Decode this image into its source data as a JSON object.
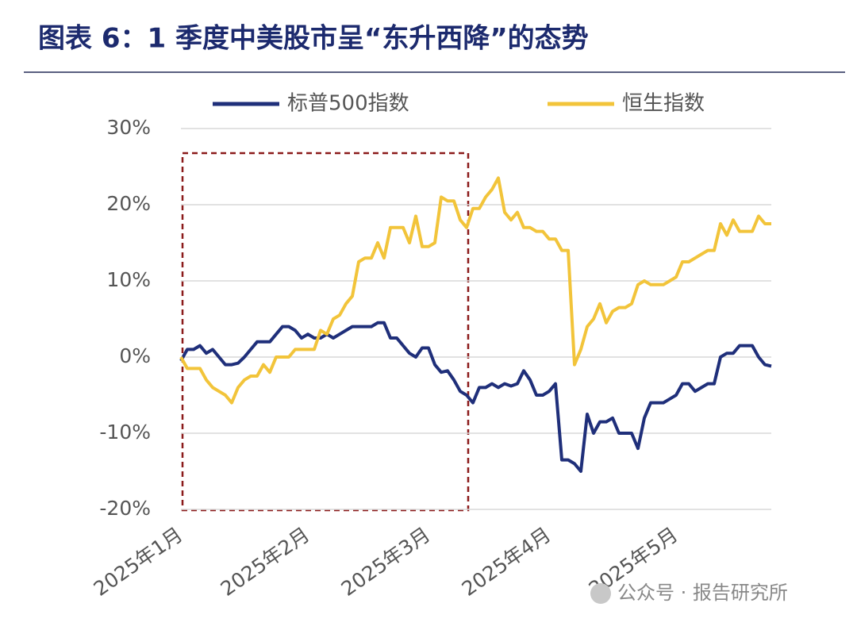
{
  "chart_data": {
    "type": "line",
    "title": "图表 6：1 季度中美股市呈“东升西降”的态势",
    "watermark": "公众号 · 报告研究所",
    "categories": [
      "2025年1月",
      null,
      null,
      null,
      null,
      null,
      null,
      null,
      null,
      null,
      null,
      null,
      null,
      null,
      null,
      null,
      null,
      null,
      null,
      null,
      "2025年2月",
      null,
      null,
      null,
      null,
      null,
      null,
      null,
      null,
      null,
      null,
      null,
      null,
      null,
      null,
      null,
      null,
      null,
      null,
      "2025年3月",
      null,
      null,
      null,
      null,
      null,
      null,
      null,
      null,
      null,
      null,
      null,
      null,
      null,
      null,
      null,
      null,
      null,
      null,
      "2025年4月",
      null,
      null,
      null,
      null,
      null,
      null,
      null,
      null,
      null,
      null,
      null,
      null,
      null,
      null,
      null,
      null,
      null,
      null,
      null,
      "2025年5月",
      null,
      null,
      null,
      null,
      null,
      null,
      null,
      null,
      null,
      null,
      null,
      null,
      null,
      null,
      null
    ],
    "series": [
      {
        "name": "标普500指数",
        "color": "#1f2f7a",
        "values": [
          -0.5,
          1,
          1,
          1.5,
          0.5,
          1,
          0,
          -1,
          -1,
          -0.8,
          0,
          1,
          2,
          2,
          2,
          3,
          4,
          4,
          3.5,
          2.5,
          3,
          2.5,
          2.5,
          3,
          2.5,
          3,
          3.5,
          4,
          4,
          4,
          4,
          4.5,
          4.5,
          2.5,
          2.5,
          1.5,
          0.5,
          0,
          1.2,
          1.2,
          -1,
          -2,
          -1.8,
          -3,
          -4.5,
          -5,
          -6,
          -4,
          -4,
          -3.5,
          -4,
          -3.5,
          -3.8,
          -3.5,
          -1.8,
          -3,
          -5,
          -5,
          -4.5,
          -3.5,
          -13.5,
          -13.5,
          -14,
          -15,
          -7.5,
          -10,
          -8.5,
          -8.5,
          -8,
          -10,
          -10,
          -10,
          -12,
          -8,
          -6,
          -6,
          -6,
          -5.5,
          -5,
          -3.5,
          -3.5,
          -4.5,
          -4,
          -3.5,
          -3.5,
          0,
          0.5,
          0.5,
          1.5,
          1.5,
          1.5,
          0,
          -1,
          -1.2
        ]
      },
      {
        "name": "恒生指数",
        "color": "#f2c43a",
        "values": [
          0,
          -1.5,
          -1.5,
          -1.5,
          -3,
          -4,
          -4.5,
          -5,
          -6,
          -4,
          -3,
          -2.5,
          -2.5,
          -1,
          -2,
          0,
          0,
          0,
          1,
          1,
          1,
          1,
          3.5,
          3,
          5,
          5.5,
          7,
          8,
          12.5,
          13,
          13,
          15,
          13,
          17,
          17,
          17,
          15,
          18.5,
          14.5,
          14.5,
          15,
          21,
          20.5,
          20.5,
          18,
          17,
          19.5,
          19.5,
          21,
          22,
          23.5,
          19,
          18,
          19,
          17,
          17,
          16.5,
          16.5,
          15.5,
          15.5,
          14,
          14,
          -1,
          1,
          4,
          5,
          7,
          4.5,
          6,
          6.5,
          6.5,
          7,
          9.5,
          10,
          9.5,
          9.5,
          9.5,
          10,
          10.5,
          12.5,
          12.5,
          13,
          13.5,
          14,
          14,
          17.5,
          16,
          18,
          16.5,
          16.5,
          16.5,
          18.5,
          17.5,
          17.5
        ]
      }
    ],
    "ylim": [
      -20,
      30
    ],
    "yticks": [
      {
        "value": -20,
        "label": "-20%"
      },
      {
        "value": -10,
        "label": "-10%"
      },
      {
        "value": 0,
        "label": "0%"
      },
      {
        "value": 10,
        "label": "10%"
      },
      {
        "value": 20,
        "label": "20%"
      },
      {
        "value": 30,
        "label": "30%"
      }
    ],
    "grid": true,
    "legend": "top"
  }
}
